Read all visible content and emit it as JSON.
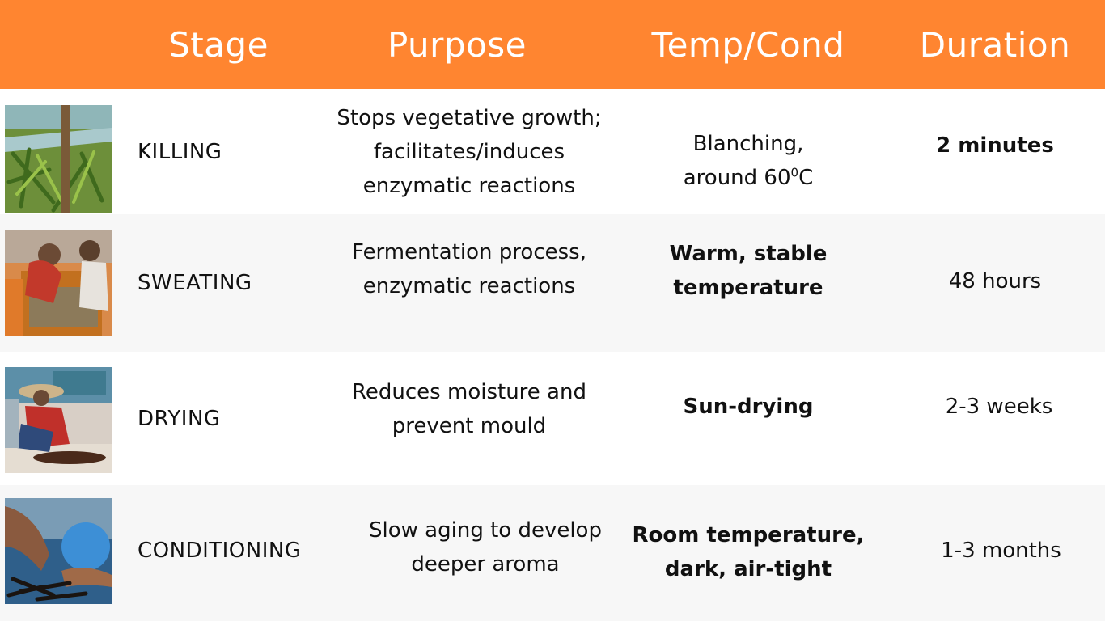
{
  "header": {
    "stage": "Stage",
    "purpose": "Purpose",
    "temp": "Temp/Cond",
    "duration": "Duration"
  },
  "rows": [
    {
      "stage": "KILLING",
      "purpose_lines": [
        "Stops vegetative growth;",
        "facilitates/induces",
        "enzymatic reactions"
      ],
      "temp_line1": "Blanching,",
      "temp_line2_pre": "around 60",
      "temp_sup": "0",
      "temp_line2_post": "C",
      "duration": "2 minutes",
      "image_icon": "green-vanilla-beans-photo"
    },
    {
      "stage": "SWEATING",
      "purpose_lines": [
        "Fermentation process,",
        "enzymatic reactions"
      ],
      "temp_lines": [
        "Warm, stable",
        "temperature"
      ],
      "duration": "48 hours",
      "image_icon": "workers-sweating-beans-photo"
    },
    {
      "stage": "DRYING",
      "purpose_lines": [
        "Reduces moisture and",
        "prevent mould"
      ],
      "temp_lines": [
        "Sun-drying"
      ],
      "duration": "2-3 weeks",
      "image_icon": "farmer-sun-drying-photo"
    },
    {
      "stage": "CONDITIONING",
      "purpose_lines": [
        "Slow aging to develop",
        "deeper aroma"
      ],
      "temp_lines": [
        "Room temperature,",
        "dark, air-tight"
      ],
      "duration": "1-3 months",
      "image_icon": "hands-holding-cured-beans-photo"
    }
  ],
  "colors": {
    "header_bg": "#ff8530",
    "header_text": "#ffffff",
    "alt_row_bg": "#f7f7f7"
  }
}
